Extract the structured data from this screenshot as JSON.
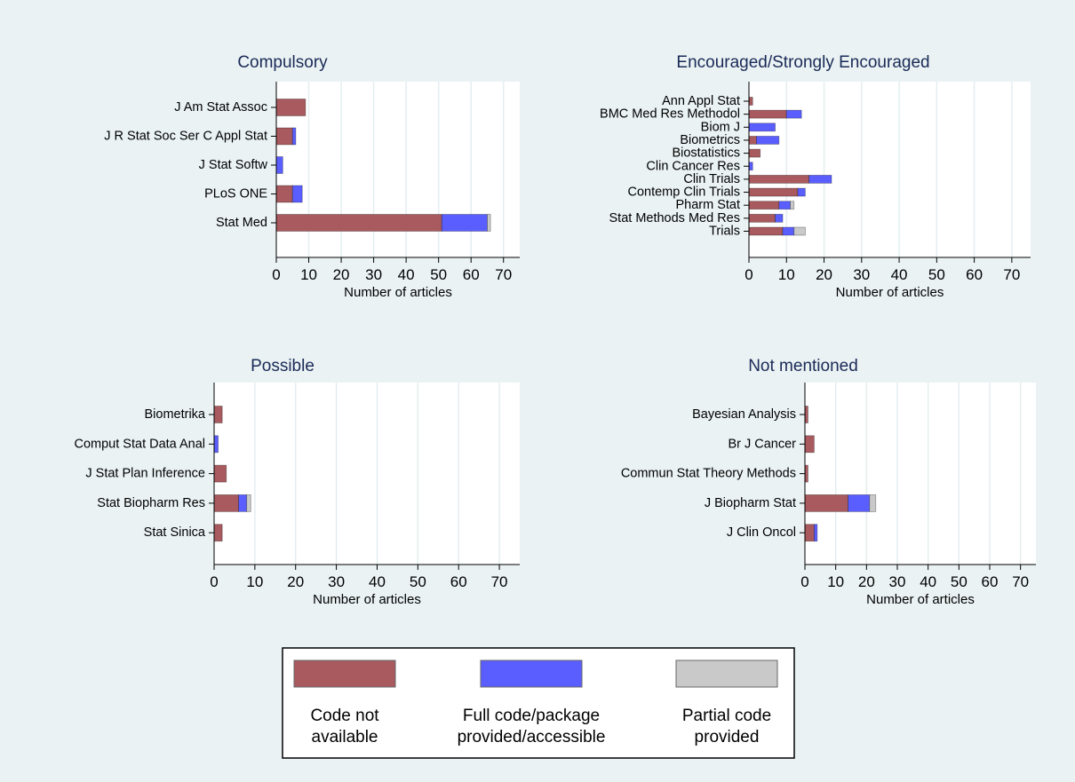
{
  "colors": {
    "code_not_available": "#a85a5e",
    "full_code": "#5a5eff",
    "partial_code": "#c9c9c9",
    "outer_background": "#eaf2f3",
    "plot_background": "#ffffff",
    "gridline": "#e4eef0",
    "title": "#1a2a57"
  },
  "legend": {
    "items": [
      {
        "key": "code_not_available",
        "lines": [
          "Code not",
          "available"
        ]
      },
      {
        "key": "full_code",
        "lines": [
          "Full code/package",
          "provided/accessible"
        ]
      },
      {
        "key": "partial_code",
        "lines": [
          "Partial code",
          "provided"
        ]
      }
    ]
  },
  "chart_data": [
    {
      "type": "bar",
      "orientation": "horizontal",
      "stacked": true,
      "title": "Compulsory",
      "xlabel": "Number of articles",
      "xlim": [
        0,
        75
      ],
      "xticks": [
        0,
        10,
        20,
        30,
        40,
        50,
        60,
        70
      ],
      "categories": [
        "J Am Stat Assoc",
        "J R Stat Soc Ser C Appl Stat",
        "J Stat Softw",
        "PLoS ONE",
        "Stat Med"
      ],
      "series": [
        {
          "key": "code_not_available",
          "values": [
            9,
            5,
            0,
            5,
            51
          ]
        },
        {
          "key": "full_code",
          "values": [
            0,
            1,
            2,
            3,
            14
          ]
        },
        {
          "key": "partial_code",
          "values": [
            0,
            0,
            0,
            0,
            1
          ]
        }
      ]
    },
    {
      "type": "bar",
      "orientation": "horizontal",
      "stacked": true,
      "title": "Encouraged/Strongly Encouraged",
      "xlabel": "Number of articles",
      "xlim": [
        0,
        75
      ],
      "xticks": [
        0,
        10,
        20,
        30,
        40,
        50,
        60,
        70
      ],
      "categories": [
        "Ann Appl Stat",
        "BMC Med Res Methodol",
        "Biom J",
        "Biometrics",
        "Biostatistics",
        "Clin Cancer Res",
        "Clin Trials",
        "Contemp Clin Trials",
        "Pharm Stat",
        "Stat Methods Med Res",
        "Trials"
      ],
      "series": [
        {
          "key": "code_not_available",
          "values": [
            1,
            10,
            0,
            2,
            3,
            0,
            16,
            13,
            8,
            7,
            9
          ]
        },
        {
          "key": "full_code",
          "values": [
            0,
            4,
            7,
            6,
            0,
            1,
            6,
            2,
            3,
            2,
            3
          ]
        },
        {
          "key": "partial_code",
          "values": [
            0,
            0,
            0,
            0,
            0,
            0,
            0,
            0,
            1,
            0,
            3
          ]
        }
      ]
    },
    {
      "type": "bar",
      "orientation": "horizontal",
      "stacked": true,
      "title": "Possible",
      "xlabel": "Number of articles",
      "xlim": [
        0,
        75
      ],
      "xticks": [
        0,
        10,
        20,
        30,
        40,
        50,
        60,
        70
      ],
      "categories": [
        "Biometrika",
        "Comput Stat Data Anal",
        "J Stat Plan Inference",
        "Stat Biopharm Res",
        "Stat Sinica"
      ],
      "series": [
        {
          "key": "code_not_available",
          "values": [
            2,
            0,
            3,
            6,
            2
          ]
        },
        {
          "key": "full_code",
          "values": [
            0,
            1,
            0,
            2,
            0
          ]
        },
        {
          "key": "partial_code",
          "values": [
            0,
            0,
            0,
            1,
            0
          ]
        }
      ]
    },
    {
      "type": "bar",
      "orientation": "horizontal",
      "stacked": true,
      "title": "Not mentioned",
      "xlabel": "Number of articles",
      "xlim": [
        0,
        75
      ],
      "xticks": [
        0,
        10,
        20,
        30,
        40,
        50,
        60,
        70
      ],
      "categories": [
        "Bayesian Analysis",
        "Br J Cancer",
        "Commun Stat Theory Methods",
        "J Biopharm Stat",
        "J Clin Oncol"
      ],
      "series": [
        {
          "key": "code_not_available",
          "values": [
            1,
            3,
            1,
            14,
            3
          ]
        },
        {
          "key": "full_code",
          "values": [
            0,
            0,
            0,
            7,
            1
          ]
        },
        {
          "key": "partial_code",
          "values": [
            0,
            0,
            0,
            2,
            0
          ]
        }
      ]
    }
  ]
}
